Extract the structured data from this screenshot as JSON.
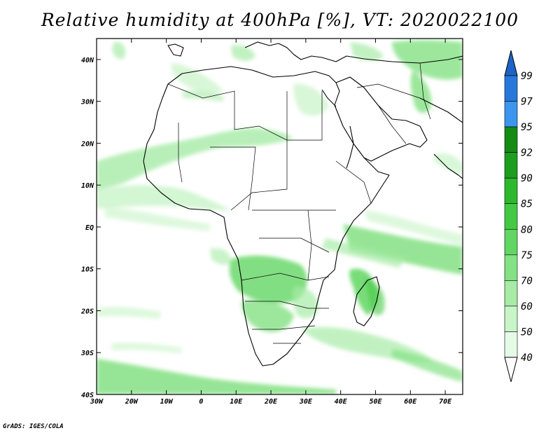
{
  "title": "Relative humidity at 400hPa [%], VT: 2020022100",
  "credit": "GrADS: IGES/COLA",
  "map": {
    "lon_range": [
      -30,
      75
    ],
    "lat_range": [
      -40,
      45
    ],
    "lon_ticks": [
      {
        "value": -30,
        "label": "30W"
      },
      {
        "value": -20,
        "label": "20W"
      },
      {
        "value": -10,
        "label": "10W"
      },
      {
        "value": 0,
        "label": "0"
      },
      {
        "value": 10,
        "label": "10E"
      },
      {
        "value": 20,
        "label": "20E"
      },
      {
        "value": 30,
        "label": "30E"
      },
      {
        "value": 40,
        "label": "40E"
      },
      {
        "value": 50,
        "label": "50E"
      },
      {
        "value": 60,
        "label": "60E"
      },
      {
        "value": 70,
        "label": "70E"
      }
    ],
    "lat_ticks": [
      {
        "value": 40,
        "label": "40N"
      },
      {
        "value": 30,
        "label": "30N"
      },
      {
        "value": 20,
        "label": "20N"
      },
      {
        "value": 10,
        "label": "10N"
      },
      {
        "value": 0,
        "label": "EQ"
      },
      {
        "value": -10,
        "label": "10S"
      },
      {
        "value": -20,
        "label": "20S"
      },
      {
        "value": -30,
        "label": "30S"
      },
      {
        "value": -40,
        "label": "40S"
      }
    ]
  },
  "colorbar": {
    "levels": [
      "40",
      "50",
      "60",
      "70",
      "75",
      "80",
      "85",
      "90",
      "92",
      "95",
      "97",
      "99"
    ],
    "colors": [
      "#ffffff",
      "#e6fbe6",
      "#c8f4c8",
      "#a6eba6",
      "#84e184",
      "#62d662",
      "#44c944",
      "#2db82d",
      "#1e9e1e",
      "#148c14",
      "#3c96f0",
      "#2878dc",
      "#1e64c8"
    ]
  }
}
